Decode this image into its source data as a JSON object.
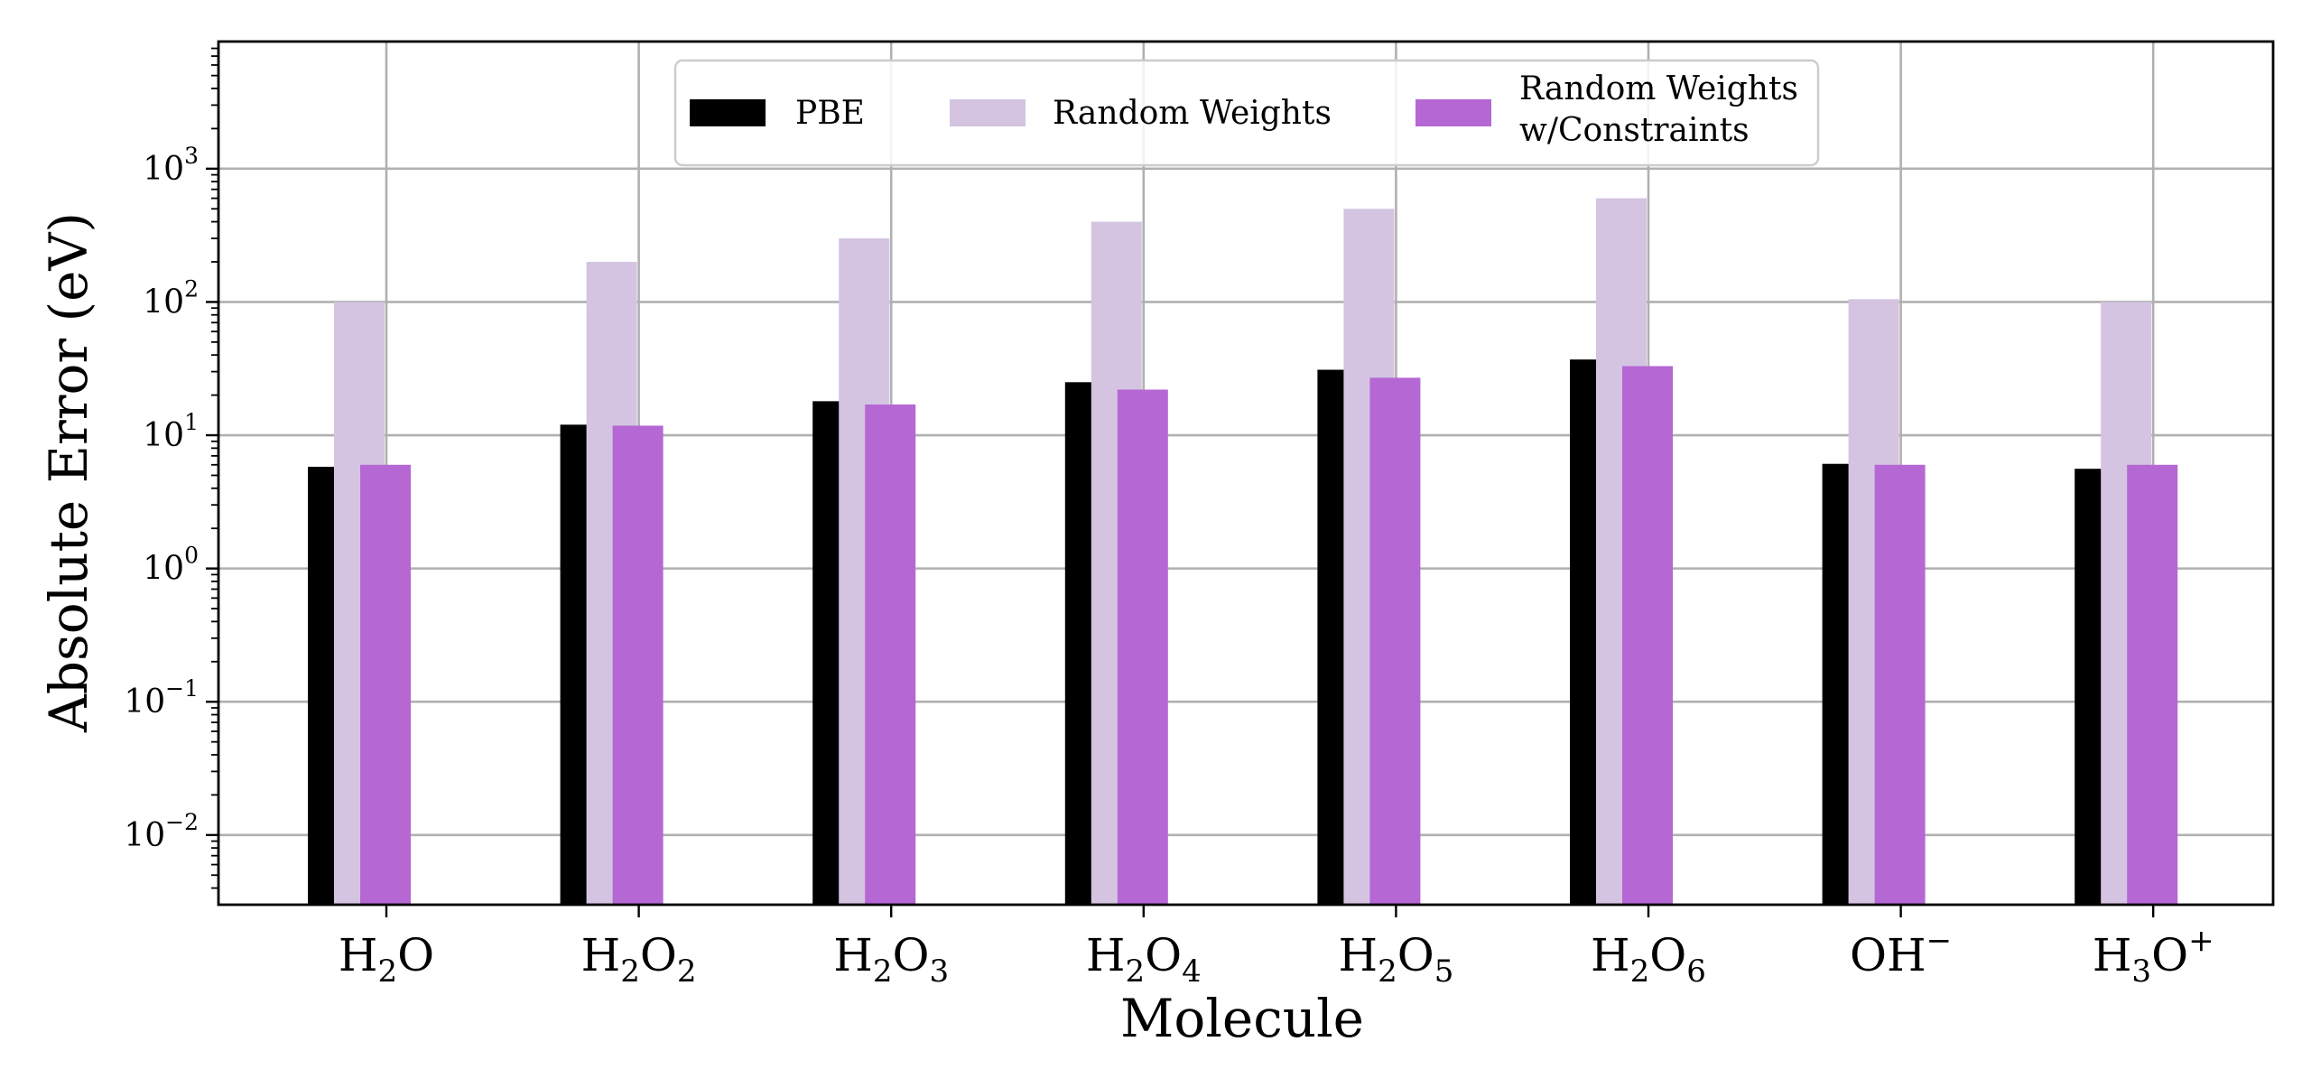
{
  "chart_data": {
    "type": "bar",
    "xlabel": "Molecule",
    "ylabel": "Absolute Error (eV)",
    "yscale": "log",
    "ylim": [
      0.003,
      9000
    ],
    "grid": true,
    "legend_position": "top-center",
    "categories": [
      {
        "base": "H",
        "sub1": "2",
        "mid": "O",
        "sub2": "",
        "sup": ""
      },
      {
        "base": "H",
        "sub1": "2",
        "mid": "O",
        "sub2": "2",
        "sup": ""
      },
      {
        "base": "H",
        "sub1": "2",
        "mid": "O",
        "sub2": "3",
        "sup": ""
      },
      {
        "base": "H",
        "sub1": "2",
        "mid": "O",
        "sub2": "4",
        "sup": ""
      },
      {
        "base": "H",
        "sub1": "2",
        "mid": "O",
        "sub2": "5",
        "sup": ""
      },
      {
        "base": "H",
        "sub1": "2",
        "mid": "O",
        "sub2": "6",
        "sup": ""
      },
      {
        "base": "OH",
        "sub1": "",
        "mid": "",
        "sub2": "",
        "sup": "−"
      },
      {
        "base": "H",
        "sub1": "3",
        "mid": "O",
        "sub2": "",
        "sup": "+"
      }
    ],
    "yticks": [
      {
        "value": 0.01,
        "base": "10",
        "exp": "−2"
      },
      {
        "value": 0.1,
        "base": "10",
        "exp": "−1"
      },
      {
        "value": 1,
        "base": "10",
        "exp": "0"
      },
      {
        "value": 10,
        "base": "10",
        "exp": "1"
      },
      {
        "value": 100,
        "base": "10",
        "exp": "2"
      },
      {
        "value": 1000,
        "base": "10",
        "exp": "3"
      }
    ],
    "series": [
      {
        "name": "PBE",
        "color": "#000000",
        "values": [
          5.8,
          12.0,
          18.0,
          25.0,
          31.0,
          37.0,
          6.1,
          5.6
        ]
      },
      {
        "name": "Random Weights",
        "color": "#d4c4e2",
        "values": [
          100,
          200,
          300,
          400,
          500,
          600,
          105,
          100
        ]
      },
      {
        "name": "Random Weights w/Constraints",
        "color": "#b567d4",
        "values": [
          6.0,
          11.8,
          17.0,
          22.0,
          27.0,
          33.0,
          6.0,
          6.0
        ]
      }
    ],
    "legend": [
      {
        "lines": [
          "PBE"
        ]
      },
      {
        "lines": [
          "Random Weights"
        ]
      },
      {
        "lines": [
          "Random Weights",
          "w/Constraints"
        ]
      }
    ]
  }
}
